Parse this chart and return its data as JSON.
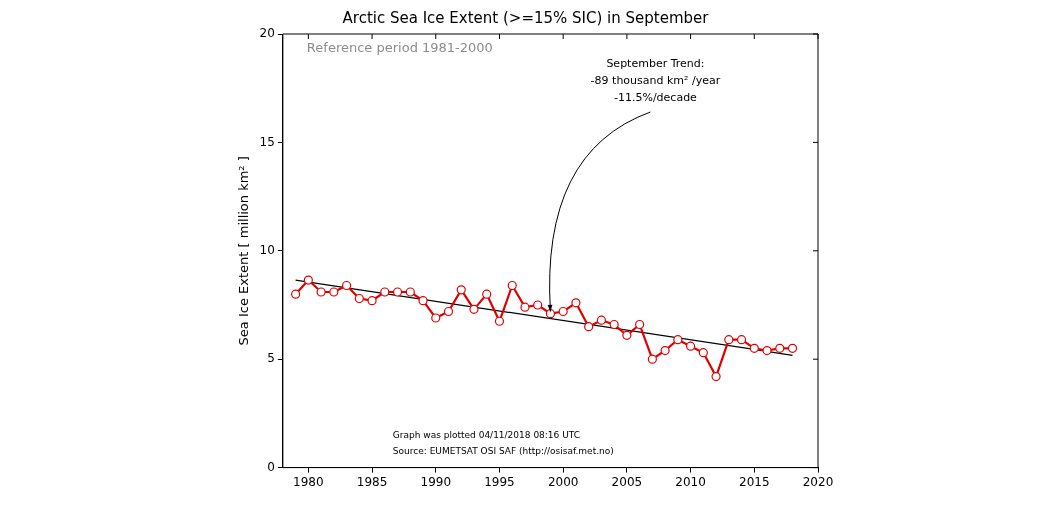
{
  "chart_data": {
    "type": "line",
    "title": "Arctic Sea Ice Extent (>=15% SIC) in September",
    "ylabel": "Sea Ice Extent [ million km² ]",
    "x": [
      1979,
      1980,
      1981,
      1982,
      1983,
      1984,
      1985,
      1986,
      1987,
      1988,
      1989,
      1990,
      1991,
      1992,
      1993,
      1994,
      1995,
      1996,
      1997,
      1998,
      1999,
      2000,
      2001,
      2002,
      2003,
      2004,
      2005,
      2006,
      2007,
      2008,
      2009,
      2010,
      2011,
      2012,
      2013,
      2014,
      2015,
      2016,
      2017,
      2018
    ],
    "series": [
      {
        "color": "#e00000",
        "marker": "circle",
        "values": [
          8.0,
          8.65,
          8.1,
          8.1,
          8.4,
          7.8,
          7.7,
          8.1,
          8.1,
          8.1,
          7.7,
          6.9,
          7.2,
          8.2,
          7.3,
          8.0,
          6.75,
          8.4,
          7.4,
          7.5,
          7.1,
          7.2,
          7.6,
          6.5,
          6.8,
          6.6,
          6.1,
          6.6,
          5.0,
          5.4,
          5.9,
          5.6,
          5.3,
          4.2,
          5.9,
          5.9,
          5.5,
          5.4,
          5.5,
          5.5
        ]
      },
      {
        "type": "line",
        "color": "#000000",
        "marker": "none",
        "x": [
          1979,
          2018
        ],
        "values": [
          8.65,
          5.18
        ]
      }
    ],
    "xlim": [
      1978,
      2020
    ],
    "xticks": [
      1980,
      1985,
      1990,
      1995,
      2000,
      2005,
      2010,
      2015,
      2020
    ],
    "ylim": [
      0,
      20
    ],
    "yticks": [
      0,
      5,
      10,
      15,
      20
    ],
    "grid": false,
    "legend": false,
    "annotations": [
      "Reference period 1981-2000",
      {
        "text": "September Trend:\n-89 thousand km² /year\n-11.5%/decade",
        "x": 1999,
        "y": 7.2
      },
      "Graph was plotted 04/11/2018 08:16 UTC",
      "Source: EUMETSAT OSI SAF (http://osisaf.met.no)"
    ]
  }
}
